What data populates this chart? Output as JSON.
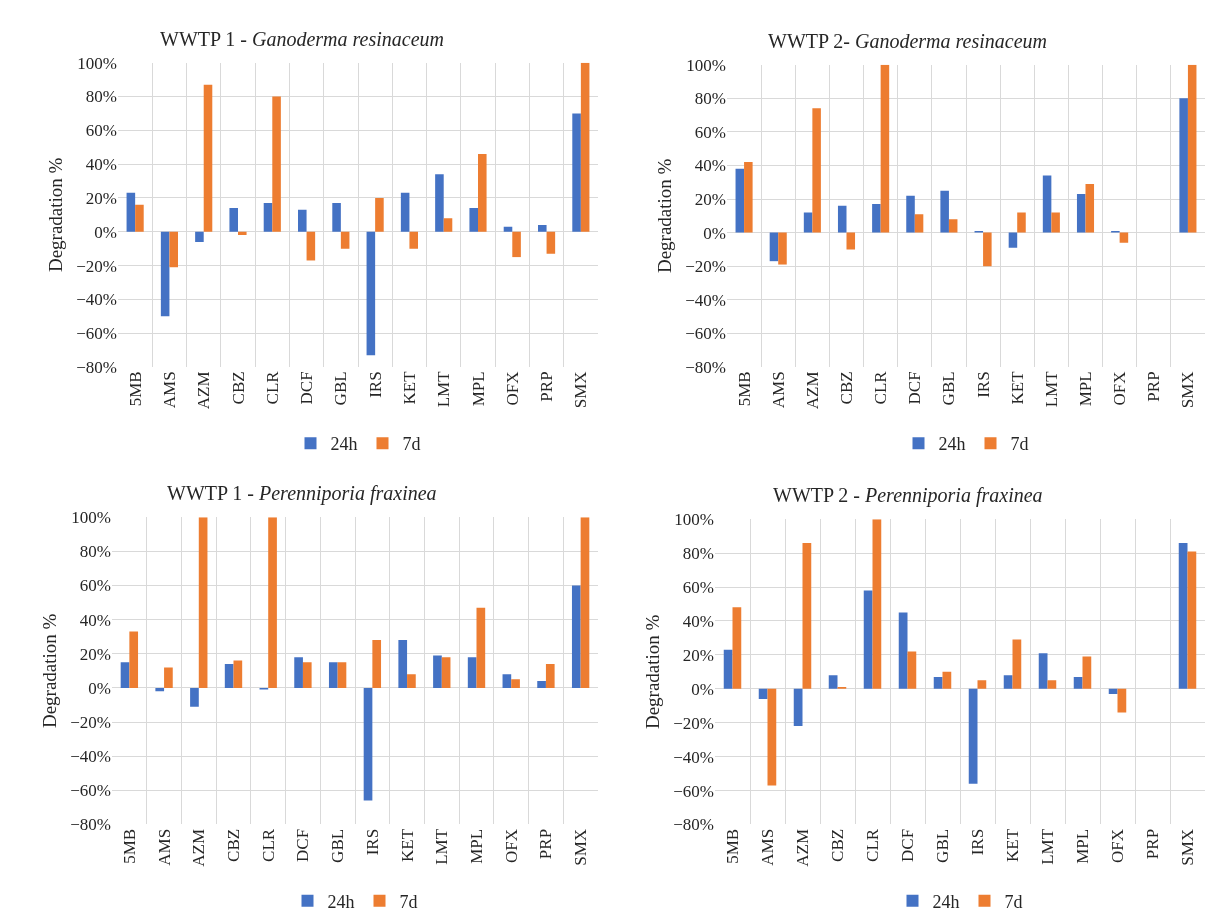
{
  "chart_data": [
    {
      "type": "bar",
      "title": "WWTP 1 - Ganoderma resinaceum",
      "ylabel": "Degradation %",
      "categories": [
        "5MB",
        "AMS",
        "AZM",
        "CBZ",
        "CLR",
        "DCF",
        "GBL",
        "IRS",
        "KET",
        "LMT",
        "MPL",
        "OFX",
        "PRP",
        "SMX"
      ],
      "series": [
        {
          "name": "24h",
          "color": "#4472c4",
          "values": [
            23,
            -50,
            -6,
            14,
            17,
            13,
            17,
            -73,
            23,
            34,
            14,
            3,
            4,
            70
          ]
        },
        {
          "name": "7d",
          "color": "#ed7d31",
          "values": [
            16,
            -21,
            87,
            -2,
            80,
            -17,
            -10,
            20,
            -10,
            8,
            46,
            -15,
            -13,
            100
          ]
        }
      ],
      "ylim": [
        -80,
        100
      ],
      "yticks": [
        {
          "value": -80,
          "label": "−80%"
        },
        {
          "value": -60,
          "label": "−60%"
        },
        {
          "value": -40,
          "label": "−40%"
        },
        {
          "value": -20,
          "label": "−20%"
        },
        {
          "value": 0,
          "label": "0%"
        },
        {
          "value": 20,
          "label": "20%"
        },
        {
          "value": 40,
          "label": "40%"
        },
        {
          "value": 60,
          "label": "60%"
        },
        {
          "value": 80,
          "label": "80%"
        },
        {
          "value": 100,
          "label": "100%"
        }
      ],
      "grid": true,
      "legend": "bottom"
    },
    {
      "type": "bar",
      "title": "WWTP 2- Ganoderma resinaceum",
      "ylabel": "Degradation %",
      "categories": [
        "5MB",
        "AMS",
        "AZM",
        "CBZ",
        "CLR",
        "DCF",
        "GBL",
        "IRS",
        "KET",
        "LMT",
        "MPL",
        "OFX",
        "PRP",
        "SMX"
      ],
      "series": [
        {
          "name": "24h",
          "color": "#4472c4",
          "values": [
            38,
            -17,
            12,
            16,
            17,
            22,
            25,
            1,
            -9,
            34,
            23,
            1,
            null,
            80
          ]
        },
        {
          "name": "7d",
          "color": "#ed7d31",
          "values": [
            42,
            -19,
            74,
            -10,
            100,
            11,
            8,
            -20,
            12,
            12,
            29,
            -6,
            null,
            100
          ]
        }
      ],
      "ylim": [
        -80,
        100
      ],
      "yticks": [
        {
          "value": -80,
          "label": "−80%"
        },
        {
          "value": -60,
          "label": "−60%"
        },
        {
          "value": -40,
          "label": "−40%"
        },
        {
          "value": -20,
          "label": "−20%"
        },
        {
          "value": 0,
          "label": "0%"
        },
        {
          "value": 20,
          "label": "20%"
        },
        {
          "value": 40,
          "label": "40%"
        },
        {
          "value": 60,
          "label": "60%"
        },
        {
          "value": 80,
          "label": "80%"
        },
        {
          "value": 100,
          "label": "100%"
        }
      ],
      "grid": true,
      "legend": "bottom"
    },
    {
      "type": "bar",
      "title": "WWTP 1 - Perenniporia fraxinea",
      "ylabel": "Degradation %",
      "categories": [
        "5MB",
        "AMS",
        "AZM",
        "CBZ",
        "CLR",
        "DCF",
        "GBL",
        "IRS",
        "KET",
        "LMT",
        "MPL",
        "OFX",
        "PRP",
        "SMX"
      ],
      "series": [
        {
          "name": "24h",
          "color": "#4472c4",
          "values": [
            15,
            -2,
            -11,
            14,
            -1,
            18,
            15,
            -66,
            28,
            19,
            18,
            8,
            4,
            60
          ]
        },
        {
          "name": "7d",
          "color": "#ed7d31",
          "values": [
            33,
            12,
            100,
            16,
            100,
            15,
            15,
            28,
            8,
            18,
            47,
            5,
            14,
            100
          ]
        }
      ],
      "ylim": [
        -80,
        100
      ],
      "yticks": [
        {
          "value": -80,
          "label": "−80%"
        },
        {
          "value": -60,
          "label": "−60%"
        },
        {
          "value": -40,
          "label": "−40%"
        },
        {
          "value": -20,
          "label": "−20%"
        },
        {
          "value": 0,
          "label": "0%"
        },
        {
          "value": 20,
          "label": "20%"
        },
        {
          "value": 40,
          "label": "40%"
        },
        {
          "value": 60,
          "label": "60%"
        },
        {
          "value": 80,
          "label": "80%"
        },
        {
          "value": 100,
          "label": "100%"
        }
      ],
      "grid": true,
      "legend": "bottom"
    },
    {
      "type": "bar",
      "title": "WWTP 2 - Perenniporia fraxinea",
      "ylabel": "Degradation %",
      "categories": [
        "5MB",
        "AMS",
        "AZM",
        "CBZ",
        "CLR",
        "DCF",
        "GBL",
        "IRS",
        "KET",
        "LMT",
        "MPL",
        "OFX",
        "PRP",
        "SMX"
      ],
      "series": [
        {
          "name": "24h",
          "color": "#4472c4",
          "values": [
            23,
            -6,
            -22,
            8,
            58,
            45,
            7,
            -56,
            8,
            21,
            7,
            -3,
            null,
            86
          ]
        },
        {
          "name": "7d",
          "color": "#ed7d31",
          "values": [
            48,
            -57,
            86,
            1,
            100,
            22,
            10,
            5,
            29,
            5,
            19,
            -14,
            null,
            81
          ]
        }
      ],
      "ylim": [
        -80,
        100
      ],
      "yticks": [
        {
          "value": -80,
          "label": "−80%"
        },
        {
          "value": -60,
          "label": "−60%"
        },
        {
          "value": -40,
          "label": "−40%"
        },
        {
          "value": -20,
          "label": "−20%"
        },
        {
          "value": 0,
          "label": "0%"
        },
        {
          "value": 20,
          "label": "20%"
        },
        {
          "value": 40,
          "label": "40%"
        },
        {
          "value": 60,
          "label": "60%"
        },
        {
          "value": 80,
          "label": "80%"
        },
        {
          "value": 100,
          "label": "100%"
        }
      ],
      "grid": true,
      "legend": "bottom"
    }
  ]
}
